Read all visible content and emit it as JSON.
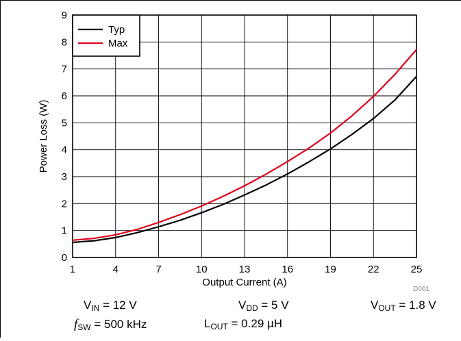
{
  "chart_data": {
    "type": "line",
    "xlabel": "Output Current (A)",
    "ylabel": "Power Loss (W)",
    "xlim": [
      1,
      25
    ],
    "ylim": [
      0,
      9
    ],
    "xticks": [
      "1",
      "4",
      "7",
      "10",
      "13",
      "16",
      "19",
      "22",
      "25"
    ],
    "yticks": [
      "0",
      "1",
      "2",
      "3",
      "4",
      "5",
      "6",
      "7",
      "8",
      "9"
    ],
    "grid": true,
    "legend_position": "top-left",
    "series": [
      {
        "name": "Typ",
        "color": "#000000",
        "x": [
          1,
          2.5,
          4,
          5.5,
          7,
          8.5,
          10,
          11.5,
          13,
          14.5,
          16,
          17.5,
          19,
          20.5,
          22,
          23.5,
          25
        ],
        "y": [
          0.56,
          0.62,
          0.74,
          0.92,
          1.14,
          1.38,
          1.66,
          1.97,
          2.32,
          2.69,
          3.1,
          3.55,
          4.03,
          4.57,
          5.16,
          5.85,
          6.72
        ]
      },
      {
        "name": "Max",
        "color": "#e0001b",
        "x": [
          1,
          2.5,
          4,
          5.5,
          7,
          8.5,
          10,
          11.5,
          13,
          14.5,
          16,
          17.5,
          19,
          20.5,
          22,
          23.5,
          25
        ],
        "y": [
          0.64,
          0.71,
          0.84,
          1.04,
          1.3,
          1.59,
          1.91,
          2.27,
          2.66,
          3.09,
          3.56,
          4.06,
          4.62,
          5.26,
          5.98,
          6.8,
          7.72
        ]
      }
    ]
  },
  "conditions": {
    "vin": {
      "sym": "V",
      "sub": "IN",
      "value": " = 12 V"
    },
    "vdd": {
      "sym": "V",
      "sub": "DD",
      "value": " = 5 V"
    },
    "vout": {
      "sym": "V",
      "sub": "OUT",
      "value": " = 1.8 V"
    },
    "fsw": {
      "sym": "f",
      "sub": "SW",
      "value": " = 500 kHz"
    },
    "lout": {
      "sym": "L",
      "sub": "OUT",
      "value": " = 0.29 µH"
    }
  },
  "figure_code": "D001"
}
